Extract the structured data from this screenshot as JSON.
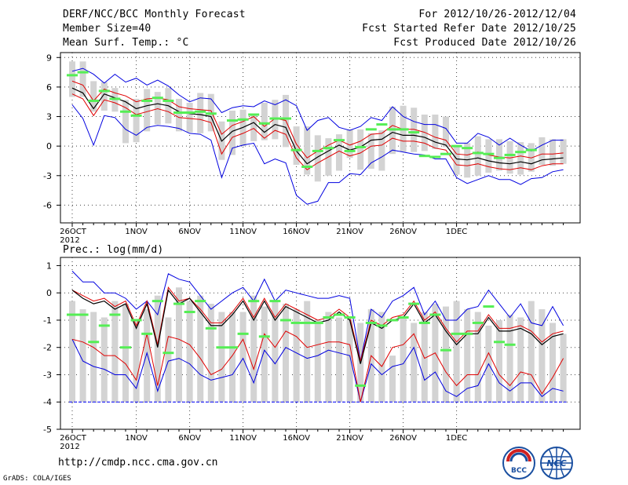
{
  "header": {
    "title": "DERF/NCC/BCC Monthly Forecast",
    "member_size": "Member Size=40",
    "variable": "Mean Surf. Temp.: °C",
    "period": "For 2012/10/26-2012/12/04",
    "started": "Fcst Started Refer Date 2012/10/25",
    "produced": "Fcst Produced Date 2012/10/26"
  },
  "footer": {
    "url": "http://cmdp.ncc.cma.gov.cn",
    "credit": "GrADS: COLA/IGES",
    "logo_left_text": "BCC",
    "logo_right_text": "NCC"
  },
  "colors": {
    "bar": "#d3d3d3",
    "median": "#000000",
    "inner": "#e00000",
    "outer": "#0000e0",
    "obs": "#55ee55",
    "baseline": "#0000ff"
  },
  "chart_data": [
    {
      "type": "box-ensemble",
      "title": "Mean Surf. Temp.: °C",
      "xlabel": "",
      "ylabel": "°C",
      "ylim": [
        -7.8,
        9.5
      ],
      "yticks": [
        -6,
        -3,
        0,
        3,
        6,
        9
      ],
      "xtick_labels": [
        "26OCT\n2012",
        "1NOV",
        "6NOV",
        "11NOV",
        "16NOV",
        "21NOV",
        "26NOV",
        "1DEC"
      ],
      "xtick_days": [
        0,
        6,
        11,
        16,
        21,
        26,
        31,
        36
      ],
      "bar_low": [
        5.0,
        5.0,
        3.5,
        3.6,
        3.5,
        0.3,
        0.4,
        1.5,
        2.2,
        2.3,
        1.5,
        1.4,
        1.3,
        1.5,
        -1.4,
        -0.9,
        0.0,
        0.5,
        0.6,
        0.7,
        -0.1,
        -1.9,
        -2.9,
        -3.6,
        -3.0,
        -2.5,
        -1.2,
        -2.4,
        -2.3,
        -2.5,
        -0.8,
        -0.6,
        -0.6,
        -0.5,
        -0.3,
        -0.1,
        -2.9,
        -3.2,
        -3.0,
        -2.7,
        -2.5,
        -2.8,
        -2.9,
        -2.6,
        -1.9,
        -2.0,
        -1.8
      ],
      "bar_high": [
        8.6,
        8.6,
        6.6,
        6.5,
        5.9,
        4.7,
        4.8,
        5.8,
        5.5,
        5.9,
        4.8,
        4.4,
        5.4,
        5.3,
        2.5,
        3.6,
        3.7,
        3.3,
        4.4,
        4.7,
        5.2,
        2.0,
        2.0,
        1.1,
        0.8,
        1.2,
        1.7,
        1.7,
        1.3,
        1.6,
        4.0,
        4.1,
        3.9,
        3.2,
        3.2,
        3.0,
        0.1,
        0.3,
        1.0,
        0.7,
        0.7,
        0.5,
        0.4,
        0.3,
        0.9,
        0.7,
        0.7
      ],
      "median": [
        5.9,
        5.4,
        3.8,
        5.3,
        4.9,
        4.5,
        3.8,
        4.1,
        4.3,
        4.1,
        3.5,
        3.3,
        3.2,
        3.0,
        0.5,
        1.5,
        1.9,
        2.4,
        1.4,
        2.2,
        1.9,
        -0.5,
        -1.8,
        -1.1,
        -0.5,
        0.1,
        -0.4,
        -0.1,
        0.6,
        0.7,
        1.4,
        1.1,
        1.1,
        0.9,
        0.4,
        0.1,
        -1.3,
        -1.4,
        -1.2,
        -1.5,
        -1.7,
        -1.8,
        -1.6,
        -1.8,
        -1.4,
        -1.3,
        -1.2
      ],
      "inner_upper": [
        6.6,
        6.2,
        4.6,
        5.8,
        5.4,
        5.1,
        4.5,
        4.8,
        4.9,
        4.7,
        4.0,
        3.8,
        3.7,
        3.6,
        1.2,
        2.1,
        2.5,
        3.0,
        2.0,
        2.8,
        2.6,
        0.2,
        -1.2,
        -0.5,
        0.1,
        0.6,
        0.1,
        0.5,
        1.2,
        1.3,
        2.1,
        1.7,
        1.7,
        1.4,
        0.9,
        0.6,
        -0.8,
        -0.9,
        -0.6,
        -0.9,
        -1.1,
        -1.2,
        -1.0,
        -1.2,
        -0.8,
        -0.8,
        -0.7
      ],
      "inner_lower": [
        5.3,
        4.8,
        3.1,
        4.7,
        4.4,
        3.9,
        3.2,
        3.5,
        3.8,
        3.5,
        2.9,
        2.8,
        2.7,
        2.4,
        -0.8,
        0.9,
        1.3,
        1.8,
        0.8,
        1.6,
        1.2,
        -1.2,
        -2.4,
        -1.7,
        -1.1,
        -0.5,
        -1.0,
        -0.7,
        0.0,
        0.1,
        0.8,
        0.5,
        0.5,
        0.3,
        -0.2,
        -0.4,
        -1.9,
        -2.0,
        -1.8,
        -2.1,
        -2.3,
        -2.4,
        -2.2,
        -2.4,
        -2.0,
        -1.8,
        -1.8
      ],
      "outer_upper": [
        7.6,
        7.9,
        7.3,
        6.4,
        7.3,
        6.5,
        6.9,
        6.2,
        6.7,
        6.1,
        5.2,
        4.5,
        4.9,
        4.8,
        3.4,
        3.9,
        4.1,
        4.0,
        4.6,
        4.2,
        4.7,
        4.1,
        1.6,
        2.6,
        2.9,
        1.9,
        1.6,
        2.0,
        2.9,
        2.6,
        4.0,
        3.0,
        2.5,
        2.2,
        2.2,
        1.8,
        0.3,
        0.3,
        1.3,
        0.9,
        0.1,
        0.8,
        0.1,
        -0.5,
        0.1,
        0.6,
        0.6
      ],
      "outer_lower": [
        4.2,
        2.8,
        0.1,
        3.1,
        2.9,
        1.7,
        1.1,
        1.9,
        2.1,
        2.0,
        1.8,
        1.3,
        1.2,
        0.6,
        -3.2,
        -0.2,
        0.1,
        0.3,
        -1.8,
        -1.3,
        -1.7,
        -5.0,
        -5.9,
        -5.6,
        -3.7,
        -3.7,
        -2.8,
        -2.9,
        -1.7,
        -1.1,
        -0.4,
        -0.6,
        -0.8,
        -0.9,
        -1.3,
        -1.3,
        -3.2,
        -3.8,
        -3.4,
        -3.0,
        -3.4,
        -3.4,
        -3.9,
        -3.3,
        -3.2,
        -2.6,
        -2.4
      ],
      "obs": [
        7.2,
        7.5,
        4.6,
        5.6,
        4.8,
        3.5,
        3.1,
        4.6,
        4.9,
        4.6,
        3.4,
        3.4,
        3.5,
        3.3,
        null,
        2.6,
        2.7,
        3.2,
        2.3,
        2.8,
        2.8,
        -0.4,
        -2.1,
        -0.5,
        -0.2,
        0.6,
        -0.5,
        -0.1,
        1.7,
        2.2,
        1.7,
        1.7,
        1.4,
        -1.0,
        -1.1,
        -0.8,
        0.0,
        -0.2,
        -0.7,
        -0.8,
        -1.2,
        -0.9,
        -0.6,
        -0.4,
        null,
        null,
        null
      ]
    },
    {
      "type": "box-ensemble",
      "title": "Prec.: log(mm/d)",
      "xlabel": "",
      "ylabel": "log(mm/d)",
      "ylim": [
        -5.0,
        1.3
      ],
      "yticks": [
        -5,
        -4,
        -3,
        -2,
        -1,
        0,
        1
      ],
      "xtick_labels": [
        "26OCT\n2012",
        "1NOV",
        "6NOV",
        "11NOV",
        "16NOV",
        "21NOV",
        "26NOV",
        "1DEC"
      ],
      "xtick_days": [
        0,
        6,
        11,
        16,
        21,
        26,
        31,
        36
      ],
      "baseline": -4.0,
      "bar_low": [
        -4,
        -4,
        -4,
        -4,
        -4,
        -4,
        -4,
        -4,
        -4,
        -4,
        -4,
        -4,
        -4,
        -4,
        -4,
        -4,
        -4,
        -4,
        -4,
        -4,
        -4,
        -4,
        -4,
        -4,
        -4,
        -4,
        -4,
        -4,
        -4,
        -4,
        -4,
        -4,
        -4,
        -4,
        -4,
        -4,
        -4,
        -4,
        -4,
        -4,
        -4,
        -4,
        -4,
        -4,
        -4,
        -4,
        -4
      ],
      "bar_high": [
        -0.3,
        -0.6,
        -0.7,
        -0.9,
        -0.3,
        -0.4,
        -1.0,
        -0.6,
        -0.1,
        -0.9,
        0.2,
        -0.3,
        -0.1,
        -0.4,
        -0.7,
        -0.7,
        -0.7,
        -0.1,
        -0.5,
        -0.3,
        -0.4,
        -0.6,
        -0.3,
        -1.0,
        -0.7,
        -0.9,
        -1.0,
        -1.1,
        -0.6,
        -0.7,
        -2.3,
        -0.9,
        -1.1,
        -0.7,
        -0.4,
        -0.5,
        -0.3,
        -0.6,
        -0.7,
        -1.2,
        -1.0,
        -0.8,
        -0.9,
        -0.3,
        -0.6,
        -1.1,
        -1.5
      ],
      "median": [
        0.1,
        -0.2,
        -0.4,
        -0.3,
        -0.6,
        -0.4,
        -1.3,
        -0.4,
        -2.0,
        0.1,
        -0.4,
        -0.2,
        -0.7,
        -1.2,
        -1.2,
        -0.8,
        -0.3,
        -1.0,
        -0.3,
        -1.0,
        -0.5,
        -0.7,
        -0.9,
        -1.1,
        -1.0,
        -0.7,
        -1.0,
        -2.6,
        -1.1,
        -1.3,
        -1.0,
        -0.9,
        -0.4,
        -1.1,
        -0.8,
        -1.4,
        -1.9,
        -1.5,
        -1.5,
        -0.9,
        -1.4,
        -1.4,
        -1.3,
        -1.5,
        -1.9,
        -1.6,
        -1.5
      ],
      "inner_upper": [
        0.1,
        -0.1,
        -0.3,
        -0.2,
        -0.5,
        -0.3,
        -1.2,
        -0.3,
        -1.9,
        0.2,
        -0.3,
        -0.2,
        -0.6,
        -1.1,
        -1.1,
        -0.7,
        -0.2,
        -0.9,
        -0.2,
        -0.9,
        -0.4,
        -0.6,
        -0.8,
        -1.0,
        -0.9,
        -0.6,
        -0.9,
        -2.5,
        -1.0,
        -1.2,
        -0.9,
        -0.8,
        -0.3,
        -1.0,
        -0.7,
        -1.3,
        -1.8,
        -1.4,
        -1.4,
        -0.8,
        -1.3,
        -1.3,
        -1.2,
        -1.4,
        -1.8,
        -1.5,
        -1.4
      ],
      "inner_lower": [
        -1.7,
        -1.8,
        -2.0,
        -2.3,
        -2.3,
        -2.6,
        -3.2,
        -1.5,
        -3.4,
        -1.6,
        -1.7,
        -1.9,
        -2.4,
        -3.0,
        -2.8,
        -2.3,
        -1.7,
        -2.8,
        -1.5,
        -2.0,
        -1.4,
        -1.6,
        -2.0,
        -1.9,
        -1.8,
        -1.8,
        -1.9,
        -4.0,
        -2.3,
        -2.7,
        -2.0,
        -1.9,
        -1.5,
        -2.4,
        -2.2,
        -2.9,
        -3.4,
        -3.0,
        -3.0,
        -2.2,
        -3.0,
        -3.4,
        -2.9,
        -3.0,
        -3.7,
        -3.1,
        -2.4
      ],
      "outer_upper": [
        0.8,
        0.4,
        0.4,
        0.0,
        0.0,
        -0.2,
        -0.6,
        -0.3,
        -0.8,
        0.7,
        0.5,
        0.4,
        -0.1,
        -0.6,
        -0.3,
        0.0,
        0.2,
        -0.3,
        0.5,
        -0.3,
        0.1,
        0.0,
        -0.1,
        -0.2,
        -0.2,
        -0.1,
        -0.2,
        -2.5,
        -0.6,
        -0.9,
        -0.3,
        -0.1,
        0.2,
        -0.8,
        -0.3,
        -1.0,
        -1.0,
        -0.6,
        -0.5,
        0.1,
        -0.4,
        -0.9,
        -0.4,
        -1.1,
        -1.2,
        -0.5,
        -1.2
      ],
      "outer_lower": [
        -1.7,
        -2.5,
        -2.7,
        -2.8,
        -3.0,
        -3.0,
        -3.5,
        -2.2,
        -3.6,
        -2.5,
        -2.4,
        -2.6,
        -3.0,
        -3.2,
        -3.1,
        -3.0,
        -2.4,
        -3.3,
        -2.1,
        -2.6,
        -2.0,
        -2.2,
        -2.4,
        -2.3,
        -2.1,
        -2.2,
        -2.3,
        -4.0,
        -2.6,
        -3.0,
        -2.7,
        -2.6,
        -2.0,
        -3.2,
        -2.9,
        -3.6,
        -3.8,
        -3.5,
        -3.4,
        -2.6,
        -3.3,
        -3.6,
        -3.3,
        -3.3,
        -3.8,
        -3.5,
        -3.6
      ],
      "obs": [
        -0.8,
        -0.8,
        -1.8,
        -1.2,
        -0.8,
        -2.0,
        -1.0,
        -1.5,
        -0.3,
        -2.2,
        -0.4,
        -0.7,
        -0.3,
        -1.3,
        -2.0,
        -2.0,
        -1.5,
        -0.3,
        -1.6,
        -0.3,
        -1.0,
        -1.1,
        -1.1,
        -1.1,
        -0.9,
        -0.8,
        -0.9,
        -3.4,
        -1.1,
        -1.2,
        -1.0,
        -0.9,
        -0.4,
        -1.1,
        -0.8,
        -2.1,
        -1.5,
        -1.5,
        -1.1,
        -0.5,
        -1.8,
        -1.9,
        null,
        null,
        null,
        null,
        null
      ]
    }
  ]
}
